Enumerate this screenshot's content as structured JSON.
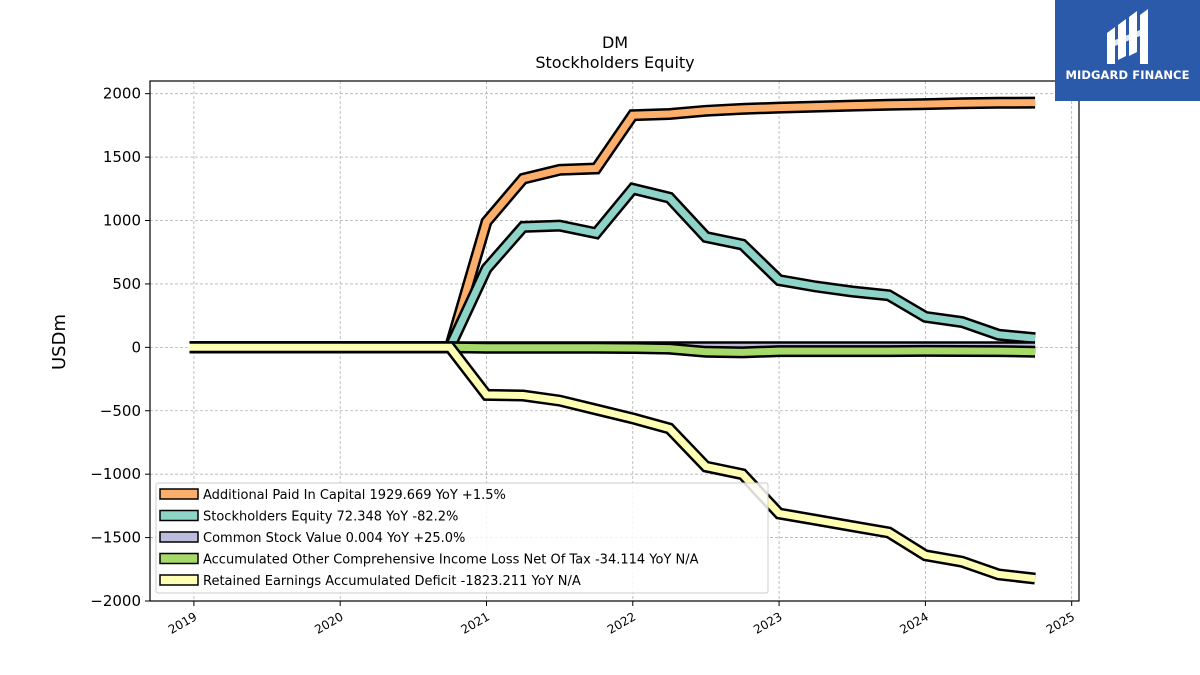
{
  "header": {
    "title_line1": "DM",
    "title_line2": "Stockholders  Equity"
  },
  "logo": {
    "text": "MIDGARD FINANCE"
  },
  "chart_data": {
    "type": "area",
    "title": "DM\nStockholders  Equity",
    "ylabel": "USDm",
    "xlabel": "",
    "ylim": [
      -2000,
      2100
    ],
    "xlim": [
      2018.7,
      2025.05
    ],
    "yticks": [
      2000,
      1500,
      1000,
      500,
      0,
      -500,
      -1000,
      -1500,
      -2000
    ],
    "ytick_labels": [
      "2000",
      "1500",
      "1000",
      "500",
      "0",
      "−500",
      "−1000",
      "−1500",
      "−2000"
    ],
    "xticks": [
      2019,
      2020,
      2021,
      2022,
      2023,
      2024,
      2025
    ],
    "xtick_labels": [
      "2019",
      "2020",
      "2021",
      "2022",
      "2023",
      "2024",
      "2025"
    ],
    "grid": true,
    "legend_position": "bottom-left",
    "series": [
      {
        "name": "Additional Paid In Capital  1929.669 YoY +1.5%",
        "color": "#fdae6b",
        "x": [
          2018.97,
          2020.75,
          2021.0,
          2021.25,
          2021.5,
          2021.75,
          2022.0,
          2022.25,
          2022.5,
          2022.75,
          2023.0,
          2023.25,
          2023.5,
          2023.75,
          2024.0,
          2024.25,
          2024.5,
          2024.75
        ],
        "values": [
          0,
          0,
          990,
          1330,
          1400,
          1410,
          1830,
          1840,
          1865,
          1880,
          1890,
          1898,
          1906,
          1912,
          1918,
          1924,
          1928,
          1930
        ]
      },
      {
        "name": "Stockholders Equity  72.348 YoY -82.2%",
        "color": "#8dd3c7",
        "x": [
          2018.97,
          2020.75,
          2021.0,
          2021.25,
          2021.5,
          2021.75,
          2022.0,
          2022.25,
          2022.5,
          2022.75,
          2023.0,
          2023.25,
          2023.5,
          2023.75,
          2024.0,
          2024.25,
          2024.5,
          2024.75
        ],
        "values": [
          0,
          0,
          620,
          950,
          960,
          900,
          1250,
          1180,
          870,
          810,
          530,
          480,
          440,
          410,
          240,
          200,
          100,
          72
        ]
      },
      {
        "name": "Common Stock Value  0.004 YoY +25.0%",
        "color": "#bcbddc",
        "x": [
          2018.97,
          2024.75
        ],
        "values": [
          0.004,
          0.004
        ]
      },
      {
        "name": "Accumulated Other Comprehensive Income Loss Net Of Tax  -34.114 YoY N/A",
        "color": "#a6d96a",
        "x": [
          2018.97,
          2020.75,
          2021.0,
          2021.5,
          2021.75,
          2022.0,
          2022.25,
          2022.5,
          2022.75,
          2023.0,
          2023.5,
          2023.75,
          2024.0,
          2024.5,
          2024.75
        ],
        "values": [
          0,
          0,
          -3,
          -3,
          -3,
          -5,
          -10,
          -35,
          -40,
          -30,
          -30,
          -30,
          -28,
          -30,
          -34
        ]
      },
      {
        "name": "Retained Earnings Accumulated Deficit  -1823.211 YoY N/A",
        "color": "#ffffb3",
        "x": [
          2018.97,
          2020.75,
          2021.0,
          2021.25,
          2021.5,
          2021.75,
          2022.0,
          2022.25,
          2022.5,
          2022.75,
          2023.0,
          2023.25,
          2023.5,
          2023.75,
          2024.0,
          2024.25,
          2024.5,
          2024.75
        ],
        "values": [
          0,
          0,
          -375,
          -380,
          -420,
          -490,
          -560,
          -640,
          -940,
          -1000,
          -1310,
          -1360,
          -1410,
          -1460,
          -1640,
          -1690,
          -1790,
          -1823
        ]
      }
    ]
  }
}
